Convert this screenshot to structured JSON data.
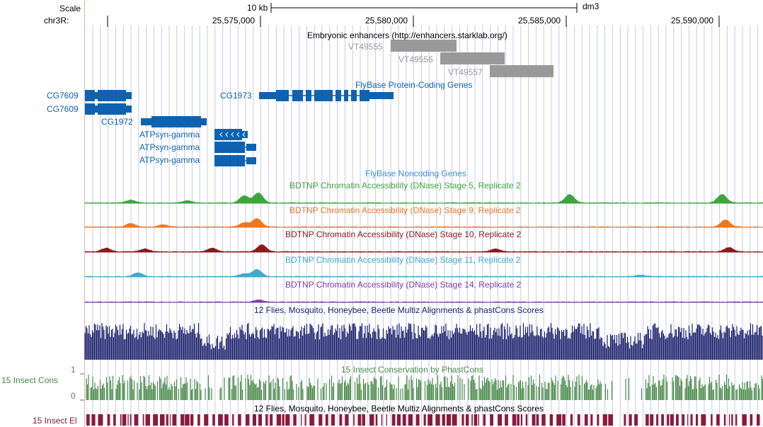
{
  "ruler": {
    "scale_label": "Scale",
    "chrom_label": "chr3R:",
    "scale_bar_label": "10 kb",
    "assembly": "dm3",
    "positions": [
      "25,575,000",
      "25,580,000",
      "25,585,000",
      "25,590,000"
    ]
  },
  "tracks": {
    "enhancers": {
      "title": "Embryonic enhancers (http://enhancers.starklab.org/)",
      "features": [
        "VT49555",
        "VT49556",
        "VT49557"
      ]
    },
    "genes": {
      "title": "FlyBase Protein-Coding Genes",
      "names": [
        "CG7609",
        "CG7609",
        "CG1972",
        "CG1973",
        "ATPsyn-gamma",
        "ATPsyn-gamma",
        "ATPsyn-gamma"
      ]
    },
    "noncoding": {
      "title": "FlyBase Noncoding Genes"
    },
    "dnase": [
      {
        "title": "BDTNP Chromatin Accessibility (DNase) Stage 5, Replicate 2",
        "color": "#3ca63c"
      },
      {
        "title": "BDTNP Chromatin Accessibility (DNase) Stage 9, Replicate 2",
        "color": "#ee7722"
      },
      {
        "title": "BDTNP Chromatin Accessibility (DNase) Stage 10, Replicate 2",
        "color": "#8b1a1a"
      },
      {
        "title": "BDTNP Chromatin Accessibility (DNase) Stage 11, Replicate 2",
        "color": "#3ea9cc"
      },
      {
        "title": "BDTNP Chromatin Accessibility (DNase) Stage 14, Replicate 2",
        "color": "#7a3ea8"
      }
    ],
    "multiz": {
      "title": "12 Flies, Mosquito, Honeybee, Beetle Multiz Alignments & phastCons Scores"
    },
    "phastcons": {
      "title": "15 Insect Conservation by PhastCons",
      "side_label": "15 Insect Cons",
      "y_max": "1",
      "y_min": "0"
    },
    "elements": {
      "title": "12 Flies, Mosquito, Honeybee, Beetle Multiz Alignments & phastCons Scores",
      "side_label": "15 Insect El"
    }
  },
  "colors": {
    "gene": "#0e62b0",
    "noncoding": "#3c8fd6",
    "enhancer": "#999999",
    "multiz": "#1a1f6b",
    "phastcons": "#4a8a4a",
    "elements": "#8b1a3a",
    "grid": "#c8c8ee"
  }
}
